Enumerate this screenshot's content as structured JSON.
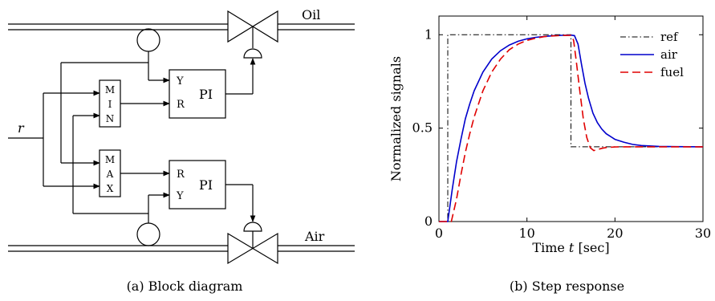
{
  "diagram": {
    "caption": "(a) Block diagram",
    "pipe_top_label": "Oil",
    "pipe_bottom_label": "Air",
    "input_label": "r",
    "min_block": [
      "M",
      "I",
      "N"
    ],
    "max_block": [
      "M",
      "A",
      "X"
    ],
    "pi_top": {
      "in1": "Y",
      "in2": "R",
      "label": "PI"
    },
    "pi_bottom": {
      "in1": "R",
      "in2": "Y",
      "label": "PI"
    }
  },
  "chart_data": {
    "type": "line",
    "caption": "(b) Step response",
    "xlabel_prefix": "Time ",
    "xlabel_var": "t",
    "xlabel_suffix": " [sec]",
    "ylabel": "Normalized signals",
    "xlim": [
      0,
      30
    ],
    "ylim": [
      0,
      1.1
    ],
    "xticks": [
      0,
      10,
      20,
      30
    ],
    "yticks": [
      0,
      0.5,
      1
    ],
    "ytick_labels": [
      "0",
      "0.5",
      "1"
    ],
    "legend_position": "top-right",
    "series": [
      {
        "name": "ref",
        "style": "dashdot",
        "color": "#000000",
        "x": [
          0,
          1,
          1,
          15,
          15,
          30
        ],
        "y": [
          0,
          0,
          1,
          1,
          0.4,
          0.4
        ]
      },
      {
        "name": "air",
        "style": "solid",
        "color": "#0000cc",
        "x": [
          0,
          1,
          1.5,
          2,
          2.5,
          3,
          3.5,
          4,
          5,
          6,
          7,
          8,
          9,
          10,
          11,
          12,
          13,
          14,
          15,
          15.4,
          15.8,
          16.2,
          16.6,
          17,
          17.5,
          18,
          18.5,
          19,
          20,
          21,
          22,
          23,
          25,
          27,
          30
        ],
        "y": [
          0,
          0,
          0.17,
          0.32,
          0.44,
          0.55,
          0.63,
          0.7,
          0.8,
          0.87,
          0.915,
          0.945,
          0.965,
          0.978,
          0.986,
          0.991,
          0.995,
          0.997,
          0.998,
          0.995,
          0.95,
          0.84,
          0.74,
          0.66,
          0.58,
          0.53,
          0.495,
          0.47,
          0.44,
          0.425,
          0.413,
          0.407,
          0.402,
          0.401,
          0.4
        ]
      },
      {
        "name": "fuel",
        "style": "dashed",
        "color": "#e00000",
        "x": [
          0,
          1.4,
          2,
          2.5,
          3,
          3.5,
          4,
          5,
          6,
          7,
          8,
          9,
          10,
          11,
          12,
          13,
          14,
          15,
          15.3,
          15.6,
          16,
          16.4,
          16.8,
          17.2,
          17.6,
          18,
          18.5,
          19,
          20,
          21,
          22,
          25,
          30
        ],
        "y": [
          0,
          0,
          0.12,
          0.25,
          0.37,
          0.47,
          0.56,
          0.7,
          0.8,
          0.87,
          0.92,
          0.95,
          0.97,
          0.982,
          0.99,
          0.994,
          0.996,
          0.997,
          0.97,
          0.86,
          0.7,
          0.55,
          0.45,
          0.395,
          0.38,
          0.385,
          0.392,
          0.396,
          0.399,
          0.4,
          0.4,
          0.4,
          0.4
        ]
      }
    ]
  }
}
